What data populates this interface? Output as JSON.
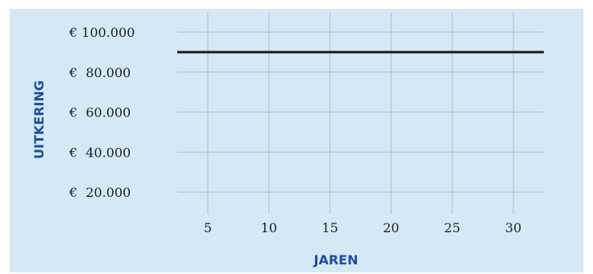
{
  "chart_data": {
    "type": "line",
    "xlabel": "JAREN",
    "ylabel": "UITKERING",
    "x_ticks": [
      5,
      10,
      15,
      20,
      25,
      30
    ],
    "x_tick_labels": [
      "5",
      "10",
      "15",
      "20",
      "25",
      "30"
    ],
    "y_ticks": [
      20000,
      40000,
      60000,
      80000,
      100000
    ],
    "y_tick_labels": [
      "€  20.000",
      "€  40.000",
      "€  60.000",
      "€  80.000",
      "€ 100.000"
    ],
    "xlim": [
      2.5,
      32.5
    ],
    "ylim": [
      10000,
      100000
    ],
    "grid": true,
    "series": [
      {
        "x": [
          2.5,
          32.5
        ],
        "y": [
          90000,
          90000
        ],
        "color": "#1a1a1a"
      }
    ],
    "colors": {
      "panel": "#d4e8f6",
      "grid": "#bdbdbd",
      "axis_label": "#1f4e9c"
    }
  }
}
